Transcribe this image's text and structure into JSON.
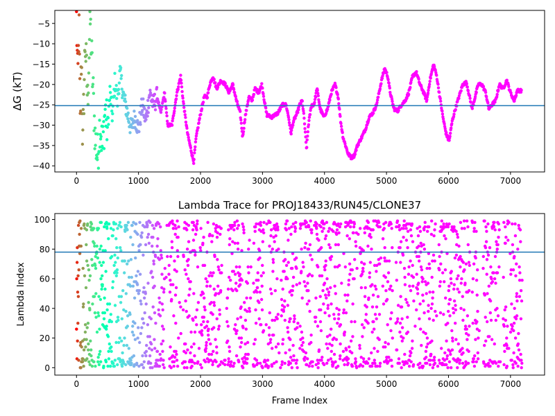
{
  "chart_data": [
    {
      "type": "scatter",
      "title": "",
      "xlabel": "",
      "ylabel": "ΔG (kT)",
      "xlim": [
        -350,
        7550
      ],
      "ylim": [
        -41.5,
        -1.8
      ],
      "xticks": [
        0,
        1000,
        2000,
        3000,
        4000,
        5000,
        6000,
        7000
      ],
      "xtick_labels": [
        "0",
        "1000",
        "2000",
        "3000",
        "4000",
        "5000",
        "6000",
        "7000"
      ],
      "yticks": [
        -40,
        -35,
        -30,
        -25,
        -20,
        -15,
        -10,
        -5
      ],
      "ytick_labels": [
        "−40",
        "−35",
        "−30",
        "−25",
        "−20",
        "−15",
        "−10",
        "−5"
      ],
      "hline": {
        "y": -25.2,
        "color": "#1f77b4"
      },
      "colormap": "rainbow (reversed by frame index)",
      "grid": false,
      "legend": "none",
      "trajectory_keypoints": [
        [
          0,
          -3
        ],
        [
          20,
          -20
        ],
        [
          40,
          -5
        ],
        [
          60,
          -30
        ],
        [
          80,
          -12
        ],
        [
          100,
          -36
        ],
        [
          140,
          -9
        ],
        [
          180,
          -24
        ],
        [
          220,
          -4
        ],
        [
          260,
          -19
        ],
        [
          300,
          -33
        ],
        [
          340,
          -38
        ],
        [
          380,
          -29
        ],
        [
          420,
          -36
        ],
        [
          460,
          -26
        ],
        [
          500,
          -31
        ],
        [
          540,
          -22
        ],
        [
          580,
          -28
        ],
        [
          620,
          -19
        ],
        [
          660,
          -24
        ],
        [
          700,
          -17
        ],
        [
          760,
          -23
        ],
        [
          820,
          -27
        ],
        [
          880,
          -31
        ],
        [
          940,
          -28
        ],
        [
          1000,
          -31
        ],
        [
          1060,
          -25
        ],
        [
          1120,
          -29
        ],
        [
          1180,
          -22
        ],
        [
          1240,
          -25
        ],
        [
          1300,
          -23
        ],
        [
          1360,
          -27
        ],
        [
          1420,
          -22
        ],
        [
          1470,
          -30
        ],
        [
          1540,
          -30
        ],
        [
          1620,
          -22
        ],
        [
          1680,
          -18
        ],
        [
          1720,
          -24
        ],
        [
          1790,
          -32
        ],
        [
          1860,
          -37
        ],
        [
          1890,
          -39
        ],
        [
          1930,
          -33
        ],
        [
          1990,
          -28
        ],
        [
          2060,
          -23
        ],
        [
          2110,
          -23
        ],
        [
          2150,
          -20
        ],
        [
          2200,
          -18
        ],
        [
          2260,
          -21
        ],
        [
          2330,
          -19
        ],
        [
          2400,
          -20
        ],
        [
          2460,
          -22
        ],
        [
          2520,
          -20
        ],
        [
          2580,
          -24
        ],
        [
          2640,
          -27
        ],
        [
          2680,
          -33
        ],
        [
          2720,
          -28
        ],
        [
          2780,
          -23
        ],
        [
          2830,
          -24
        ],
        [
          2880,
          -21
        ],
        [
          2940,
          -22
        ],
        [
          2990,
          -20
        ],
        [
          3030,
          -24
        ],
        [
          3070,
          -27.5
        ],
        [
          3150,
          -28
        ],
        [
          3200,
          -27.5
        ],
        [
          3250,
          -27
        ],
        [
          3320,
          -25
        ],
        [
          3380,
          -25
        ],
        [
          3420,
          -28
        ],
        [
          3460,
          -32
        ],
        [
          3500,
          -29
        ],
        [
          3560,
          -27
        ],
        [
          3600,
          -25
        ],
        [
          3640,
          -24
        ],
        [
          3670,
          -28
        ],
        [
          3710,
          -36
        ],
        [
          3740,
          -30
        ],
        [
          3790,
          -25
        ],
        [
          3830,
          -25
        ],
        [
          3880,
          -21
        ],
        [
          3930,
          -26
        ],
        [
          3990,
          -28
        ],
        [
          4050,
          -26
        ],
        [
          4110,
          -22
        ],
        [
          4170,
          -20
        ],
        [
          4220,
          -23
        ],
        [
          4260,
          -29
        ],
        [
          4300,
          -33
        ],
        [
          4340,
          -35
        ],
        [
          4380,
          -37
        ],
        [
          4430,
          -38
        ],
        [
          4480,
          -37.5
        ],
        [
          4530,
          -35
        ],
        [
          4600,
          -33
        ],
        [
          4660,
          -31
        ],
        [
          4720,
          -28
        ],
        [
          4780,
          -27
        ],
        [
          4840,
          -25
        ],
        [
          4880,
          -22
        ],
        [
          4920,
          -19
        ],
        [
          4970,
          -16
        ],
        [
          5020,
          -18
        ],
        [
          5060,
          -22
        ],
        [
          5120,
          -26
        ],
        [
          5180,
          -26.5
        ],
        [
          5240,
          -25
        ],
        [
          5300,
          -24
        ],
        [
          5360,
          -22
        ],
        [
          5420,
          -18
        ],
        [
          5480,
          -17
        ],
        [
          5540,
          -20
        ],
        [
          5600,
          -22
        ],
        [
          5650,
          -24
        ],
        [
          5700,
          -19
        ],
        [
          5760,
          -15
        ],
        [
          5810,
          -18
        ],
        [
          5860,
          -23
        ],
        [
          5910,
          -28
        ],
        [
          5960,
          -32
        ],
        [
          6010,
          -34
        ],
        [
          6060,
          -29
        ],
        [
          6110,
          -26
        ],
        [
          6170,
          -23
        ],
        [
          6230,
          -20
        ],
        [
          6290,
          -19.5
        ],
        [
          6340,
          -23
        ],
        [
          6380,
          -26
        ],
        [
          6430,
          -23
        ],
        [
          6480,
          -20
        ],
        [
          6540,
          -20
        ],
        [
          6600,
          -22
        ],
        [
          6650,
          -26
        ],
        [
          6700,
          -25
        ],
        [
          6760,
          -24
        ],
        [
          6820,
          -20
        ],
        [
          6880,
          -21
        ],
        [
          6940,
          -19
        ],
        [
          7000,
          -22
        ],
        [
          7060,
          -24
        ],
        [
          7110,
          -21.5
        ],
        [
          7180,
          -21.5
        ]
      ]
    },
    {
      "type": "scatter",
      "title": "Lambda Trace for PROJ18433/RUN45/CLONE37",
      "xlabel": "Frame Index",
      "ylabel": "Lambda Index",
      "xlim": [
        -350,
        7550
      ],
      "ylim": [
        -5,
        104
      ],
      "xticks": [
        0,
        1000,
        2000,
        3000,
        4000,
        5000,
        6000,
        7000
      ],
      "xtick_labels": [
        "0",
        "1000",
        "2000",
        "3000",
        "4000",
        "5000",
        "6000",
        "7000"
      ],
      "yticks": [
        0,
        20,
        40,
        60,
        80,
        100
      ],
      "ytick_labels": [
        "0",
        "20",
        "40",
        "60",
        "80",
        "100"
      ],
      "hline": {
        "y": 78,
        "color": "#1f77b4"
      },
      "colormap": "rainbow (reversed by frame index)",
      "grid": false,
      "legend": "none",
      "lambda_range": [
        0,
        99
      ],
      "sparse_frame_gaps": [
        [
          1420,
          1490
        ],
        [
          1640,
          1720
        ],
        [
          1960,
          2000
        ],
        [
          2340,
          2420
        ],
        [
          2780,
          2850
        ],
        [
          3030,
          3090
        ],
        [
          3260,
          3300
        ],
        [
          3560,
          3600
        ],
        [
          3810,
          3850
        ],
        [
          4260,
          4300
        ],
        [
          4520,
          4560
        ],
        [
          4900,
          4940
        ],
        [
          5100,
          5150
        ],
        [
          5440,
          5480
        ],
        [
          5790,
          5840
        ],
        [
          6340,
          6380
        ],
        [
          6480,
          6560
        ],
        [
          6820,
          6880
        ],
        [
          6960,
          7000
        ]
      ]
    }
  ]
}
